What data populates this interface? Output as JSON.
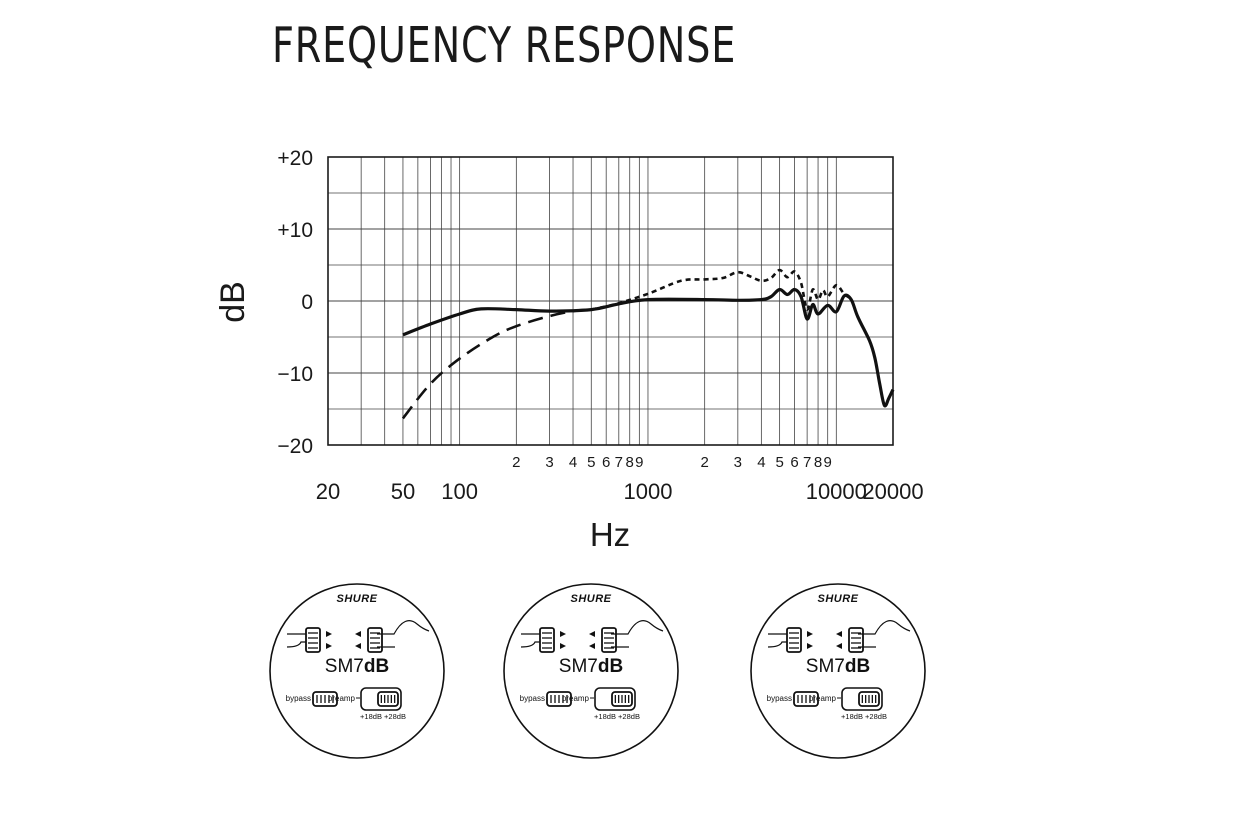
{
  "page": {
    "title": "FREQUENCY RESPONSE"
  },
  "chart_data": {
    "type": "line",
    "title": "FREQUENCY RESPONSE",
    "xlabel": "Hz",
    "ylabel": "dB",
    "x_scale": "log",
    "xlim": [
      20,
      20000
    ],
    "ylim": [
      -20,
      20
    ],
    "grid": true,
    "y_ticks": [
      {
        "value": 20,
        "label": "+20"
      },
      {
        "value": 10,
        "label": "+10"
      },
      {
        "value": 0,
        "label": "0"
      },
      {
        "value": -10,
        "label": "−10"
      },
      {
        "value": -20,
        "label": "−20"
      }
    ],
    "x_major_ticks": [
      {
        "value": 20,
        "label": "20"
      },
      {
        "value": 50,
        "label": "50"
      },
      {
        "value": 100,
        "label": "100"
      },
      {
        "value": 1000,
        "label": "1000"
      },
      {
        "value": 10000,
        "label": "10000"
      },
      {
        "value": 20000,
        "label": "20000"
      }
    ],
    "x_minor_ticks": [
      {
        "value": 200,
        "label": "2"
      },
      {
        "value": 300,
        "label": "3"
      },
      {
        "value": 400,
        "label": "4"
      },
      {
        "value": 500,
        "label": "5"
      },
      {
        "value": 600,
        "label": "6"
      },
      {
        "value": 700,
        "label": "7"
      },
      {
        "value": 800,
        "label": "8"
      },
      {
        "value": 900,
        "label": "9"
      },
      {
        "value": 2000,
        "label": "2"
      },
      {
        "value": 3000,
        "label": "3"
      },
      {
        "value": 4000,
        "label": "4"
      },
      {
        "value": 5000,
        "label": "5"
      },
      {
        "value": 6000,
        "label": "6"
      },
      {
        "value": 7000,
        "label": "7"
      },
      {
        "value": 8000,
        "label": "8"
      },
      {
        "value": 9000,
        "label": "9"
      }
    ],
    "series": [
      {
        "style": "solid",
        "x": [
          50,
          70,
          100,
          130,
          200,
          300,
          500,
          700,
          1000,
          2000,
          3000,
          4000,
          4500,
          5000,
          5500,
          6000,
          6500,
          7000,
          7500,
          8000,
          9000,
          10000,
          11000,
          12000,
          13000,
          15000,
          16000,
          17000,
          18000,
          19000,
          20000
        ],
        "y": [
          -4.7,
          -3.2,
          -1.8,
          -1.1,
          -1.2,
          -1.4,
          -1.2,
          -0.4,
          0.2,
          0.2,
          0.1,
          0.2,
          0.6,
          1.6,
          0.9,
          1.6,
          0.6,
          -2.5,
          -0.5,
          -1.8,
          -0.6,
          -1.5,
          0.7,
          0.2,
          -2.2,
          -5.5,
          -7.8,
          -11.5,
          -14.5,
          -13.5,
          -12.3
        ]
      },
      {
        "style": "dashed",
        "x": [
          50,
          70,
          100,
          150,
          200,
          300,
          400,
          500
        ],
        "y": [
          -16.3,
          -11.5,
          -8.0,
          -5.0,
          -3.5,
          -2.1,
          -1.4,
          -1.2
        ]
      },
      {
        "style": "dotted",
        "x": [
          500,
          700,
          1000,
          1500,
          2000,
          2500,
          3000,
          3500,
          4000,
          4500,
          5000,
          5500,
          6000,
          6500,
          7000,
          7500,
          8000,
          8500,
          9000,
          10000,
          11000,
          12000
        ],
        "y": [
          -1.2,
          -0.3,
          1.0,
          2.8,
          3.0,
          3.2,
          4.0,
          3.4,
          2.8,
          3.2,
          4.3,
          3.3,
          4.1,
          2.5,
          -1.2,
          1.6,
          0.2,
          1.5,
          0.6,
          2.2,
          1.0,
          0.3
        ]
      }
    ]
  },
  "dials": [
    {
      "brand": "SHURE",
      "model_prefix": "SM7",
      "model_suffix": "dB",
      "bypass_label": "bypass",
      "preamp_label": "preamp",
      "gain_low_label": "+18dB",
      "gain_high_label": "+28dB",
      "bass_switch": "flat",
      "presence_switch": "flat",
      "selected": "bypass"
    },
    {
      "brand": "SHURE",
      "model_prefix": "SM7",
      "model_suffix": "dB",
      "bypass_label": "bypass",
      "preamp_label": "preamp",
      "gain_low_label": "+18dB",
      "gain_high_label": "+28dB",
      "bass_switch": "cut",
      "presence_switch": "boost",
      "selected": "bypass"
    },
    {
      "brand": "SHURE",
      "model_prefix": "SM7",
      "model_suffix": "dB",
      "bypass_label": "bypass",
      "preamp_label": "preamp",
      "gain_low_label": "+18dB",
      "gain_high_label": "+28dB",
      "bass_switch": "flat",
      "presence_switch": "boost",
      "selected": "bypass"
    }
  ]
}
